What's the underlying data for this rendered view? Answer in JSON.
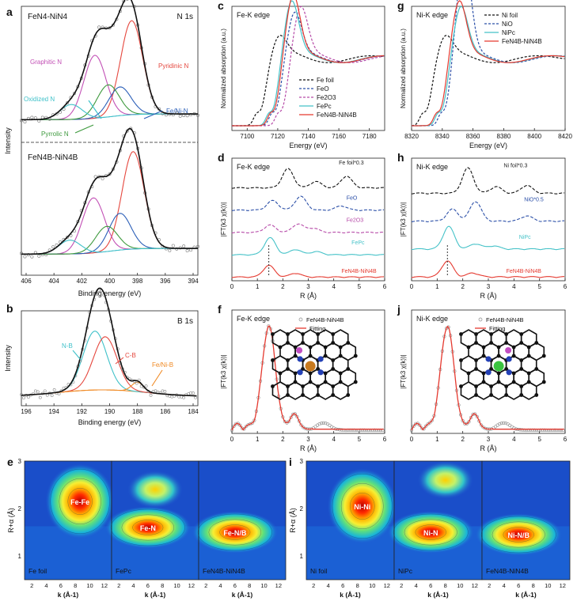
{
  "figure": {
    "panel_letters": [
      "a",
      "b",
      "c",
      "d",
      "e",
      "f",
      "g",
      "h",
      "i",
      "j"
    ]
  },
  "chart_data": [
    {
      "id": "a",
      "type": "line",
      "subtitle_top": "FeN4-NiN4",
      "subtitle_bottom": "FeN4B-NiN4B",
      "corner_label": "N 1s",
      "xlabel": "Binding energy (eV)",
      "ylabel": "Intensity",
      "xlim": [
        406,
        394
      ],
      "x_ticks": [
        "406",
        "404",
        "402",
        "400",
        "398",
        "396",
        "394"
      ],
      "annotations": [
        "Graphitic N",
        "Pyridinic N",
        "Oxidized N",
        "Fe/Ni-N",
        "Pyrrolic N"
      ],
      "top_peaks": [
        {
          "name": "Pyridinic N",
          "center": 398.5,
          "height": 0.82,
          "color": "#e5473e"
        },
        {
          "name": "Graphitic N",
          "center": 401.0,
          "height": 0.55,
          "color": "#c24fb5"
        },
        {
          "name": "Fe/Ni-N",
          "center": 399.3,
          "height": 0.25,
          "color": "#2b5fb8"
        },
        {
          "name": "Pyrrolic N",
          "center": 400.1,
          "height": 0.28,
          "color": "#3e9a3e"
        },
        {
          "name": "Oxidized N",
          "center": 402.6,
          "height": 0.13,
          "color": "#3fc1c9"
        }
      ],
      "bottom_peaks": [
        {
          "name": "Pyridinic N",
          "center": 398.4,
          "height": 0.85,
          "color": "#e5473e"
        },
        {
          "name": "Graphitic N",
          "center": 401.1,
          "height": 0.48,
          "color": "#c24fb5"
        },
        {
          "name": "Fe/Ni-N",
          "center": 399.3,
          "height": 0.32,
          "color": "#2b5fb8"
        },
        {
          "name": "Pyrrolic N",
          "center": 400.2,
          "height": 0.22,
          "color": "#3e9a3e"
        },
        {
          "name": "Oxidized N",
          "center": 402.7,
          "height": 0.12,
          "color": "#3fc1c9"
        }
      ]
    },
    {
      "id": "b",
      "type": "line",
      "corner_label": "B 1s",
      "xlabel": "Binding energy (eV)",
      "ylabel": "Intensity",
      "xlim": [
        196,
        184
      ],
      "x_ticks": [
        "196",
        "194",
        "192",
        "190",
        "188",
        "186",
        "184"
      ],
      "annotations": [
        "N-B",
        "C-B",
        "Fe/Ni-B"
      ],
      "peaks": [
        {
          "name": "N-B",
          "center": 191.0,
          "height": 0.62,
          "color": "#3fc1c9"
        },
        {
          "name": "C-B",
          "center": 190.3,
          "height": 0.56,
          "color": "#e5473e"
        },
        {
          "name": "Fe/Ni-B",
          "center": 188.1,
          "height": 0.1,
          "color": "#f08a24"
        }
      ]
    },
    {
      "id": "c",
      "type": "line",
      "corner_label": "Fe-K edge",
      "xlabel": "Energy (eV)",
      "ylabel": "Normalized absorption (a.u.)",
      "xlim": [
        7090,
        7190
      ],
      "x_ticks": [
        "7100",
        "7120",
        "7140",
        "7160",
        "7180"
      ],
      "series": [
        {
          "name": "Fe foil",
          "color": "#111111",
          "dash": "3,2",
          "e0": 7112
        },
        {
          "name": "FeO",
          "color": "#2b4fa8",
          "dash": "3,2",
          "e0": 7122
        },
        {
          "name": "Fe2O3",
          "color": "#b64aa8",
          "dash": "3,2",
          "e0": 7126
        },
        {
          "name": "FePc",
          "color": "#45c2c8",
          "dash": "",
          "e0": 7120
        },
        {
          "name": "FeN4B-NiN4B",
          "color": "#e5392f",
          "dash": "",
          "e0": 7121
        }
      ],
      "legend_labels": [
        "Fe foil",
        "FeO",
        "Fe2O3",
        "FePc",
        "FeN4B-NiN4B"
      ]
    },
    {
      "id": "d",
      "type": "line",
      "corner_label": "Fe-K edge",
      "xlabel": "R (Å)",
      "ylabel": "|FT(k3 χ(k))|",
      "xlim": [
        0,
        6
      ],
      "x_ticks": [
        "0",
        "1",
        "2",
        "3",
        "4",
        "5",
        "6"
      ],
      "curve_labels": [
        "Fe foil*0.3",
        "FeO",
        "Fe2O3",
        "FePc",
        "FeN4B-NiN4B"
      ],
      "series": [
        {
          "name": "Fe foil*0.3",
          "color": "#111111",
          "dash": "4,2",
          "peaks": [
            [
              2.2,
              0.9
            ],
            [
              4.5,
              0.55
            ],
            [
              3.3,
              0.3
            ]
          ]
        },
        {
          "name": "FeO",
          "color": "#2b4fa8",
          "dash": "4,2",
          "peaks": [
            [
              1.6,
              0.45
            ],
            [
              2.7,
              0.65
            ],
            [
              4.3,
              0.2
            ]
          ]
        },
        {
          "name": "Fe2O3",
          "color": "#b64aa8",
          "dash": "4,2",
          "peaks": [
            [
              1.5,
              0.35
            ],
            [
              2.6,
              0.4
            ],
            [
              3.2,
              0.2
            ]
          ]
        },
        {
          "name": "FePc",
          "color": "#45c2c8",
          "dash": "",
          "peaks": [
            [
              1.5,
              0.8
            ],
            [
              2.5,
              0.25
            ],
            [
              3.3,
              0.15
            ]
          ]
        },
        {
          "name": "FeN4B-NiN4B",
          "color": "#e5392f",
          "dash": "",
          "peaks": [
            [
              1.45,
              0.55
            ],
            [
              2.5,
              0.18
            ]
          ]
        }
      ],
      "marker_line_x": 1.45
    },
    {
      "id": "f",
      "type": "line",
      "corner_label": "Fe-K edge",
      "xlabel": "R (Å)",
      "ylabel": "|FT(k3 χ(k))|",
      "xlim": [
        0,
        6
      ],
      "x_ticks": [
        "0",
        "1",
        "2",
        "3",
        "4",
        "5",
        "6"
      ],
      "legend_labels": [
        "FeN4B-NiN4B",
        "Fitting"
      ],
      "main_peak": {
        "x": 1.45,
        "height": 1.0
      }
    },
    {
      "id": "g",
      "type": "line",
      "corner_label": "Ni-K edge",
      "xlabel": "Energy (eV)",
      "ylabel": "Normalized absorption (a.u.)",
      "xlim": [
        8320,
        8420
      ],
      "x_ticks": [
        "8320",
        "8340",
        "8360",
        "8380",
        "8400",
        "8420"
      ],
      "series": [
        {
          "name": "Ni foil",
          "color": "#111111",
          "dash": "3,2",
          "e0": 8333
        },
        {
          "name": "NiO",
          "color": "#2b4fa8",
          "dash": "3,2",
          "e0": 8345
        },
        {
          "name": "NiPc",
          "color": "#45c2c8",
          "dash": "",
          "e0": 8343
        },
        {
          "name": "FeN4B-NiN4B",
          "color": "#e5392f",
          "dash": "",
          "e0": 8342
        }
      ],
      "legend_labels": [
        "Ni foil",
        "NiO",
        "NiPc",
        "FeN4B-NiN4B"
      ]
    },
    {
      "id": "h",
      "type": "line",
      "corner_label": "Ni-K edge",
      "xlabel": "R (Å)",
      "ylabel": "|FT(k3 χ(k))|",
      "xlim": [
        0,
        6
      ],
      "x_ticks": [
        "0",
        "1",
        "2",
        "3",
        "4",
        "5",
        "6"
      ],
      "curve_labels": [
        "Ni foil*0.3",
        "NiO*0.5",
        "NiPc",
        "FeN4B-NiN4B"
      ],
      "series": [
        {
          "name": "Ni foil*0.3",
          "color": "#111111",
          "dash": "4,2",
          "peaks": [
            [
              2.2,
              0.95
            ],
            [
              4.5,
              0.3
            ],
            [
              3.3,
              0.25
            ]
          ]
        },
        {
          "name": "NiO*0.5",
          "color": "#2b4fa8",
          "dash": "4,2",
          "peaks": [
            [
              1.6,
              0.45
            ],
            [
              2.5,
              0.75
            ],
            [
              4.5,
              0.2
            ]
          ]
        },
        {
          "name": "NiPc",
          "color": "#45c2c8",
          "dash": "",
          "peaks": [
            [
              1.45,
              0.85
            ],
            [
              2.5,
              0.2
            ],
            [
              3.2,
              0.12
            ]
          ]
        },
        {
          "name": "FeN4B-NiN4B",
          "color": "#e5392f",
          "dash": "",
          "peaks": [
            [
              1.4,
              0.6
            ],
            [
              2.4,
              0.15
            ]
          ]
        }
      ],
      "marker_line_x": 1.4
    },
    {
      "id": "j",
      "type": "line",
      "corner_label": "Ni-K edge",
      "xlabel": "R (Å)",
      "ylabel": "|FT(k3 χ(k))|",
      "xlim": [
        0,
        6
      ],
      "x_ticks": [
        "0",
        "1",
        "2",
        "3",
        "4",
        "5",
        "6"
      ],
      "legend_labels": [
        "FeN4B-NiN4B",
        "Fitting"
      ],
      "main_peak": {
        "x": 1.4,
        "height": 1.0
      }
    },
    {
      "id": "e",
      "type": "heatmap",
      "ylabel": "R+α (Å)",
      "xlabel": "k (Å-1)",
      "y_ticks": [
        "1",
        "2",
        "3"
      ],
      "x_ticks": [
        "2",
        "4",
        "6",
        "8",
        "10",
        "12"
      ],
      "subplots": [
        {
          "label": "Fe foil",
          "spot": "Fe-Fe",
          "k": 8,
          "r": 2.15,
          "spread": "round"
        },
        {
          "label": "FePc",
          "spot": "Fe-N",
          "k": 6,
          "r": 1.6,
          "spread": "wide",
          "extra": {
            "k": 7,
            "r": 2.4
          }
        },
        {
          "label": "FeN4B-NiN4B",
          "spot": "Fe-N/B",
          "k": 6,
          "r": 1.5,
          "spread": "wide"
        }
      ]
    },
    {
      "id": "i",
      "type": "heatmap",
      "ylabel": "R+α (Å)",
      "xlabel": "k (Å-1)",
      "y_ticks": [
        "1",
        "2",
        "3"
      ],
      "x_ticks": [
        "2",
        "4",
        "6",
        "8",
        "10",
        "12"
      ],
      "subplots": [
        {
          "label": "Ni foil",
          "spot": "Ni-Ni",
          "k": 8,
          "r": 2.05,
          "spread": "round"
        },
        {
          "label": "NiPc",
          "spot": "Ni-N",
          "k": 6,
          "r": 1.5,
          "spread": "wide",
          "extra": {
            "k": 8,
            "r": 2.6
          }
        },
        {
          "label": "FeN4B-NiN4B",
          "spot": "Ni-N/B",
          "k": 6,
          "r": 1.45,
          "spread": "wide"
        }
      ]
    }
  ]
}
